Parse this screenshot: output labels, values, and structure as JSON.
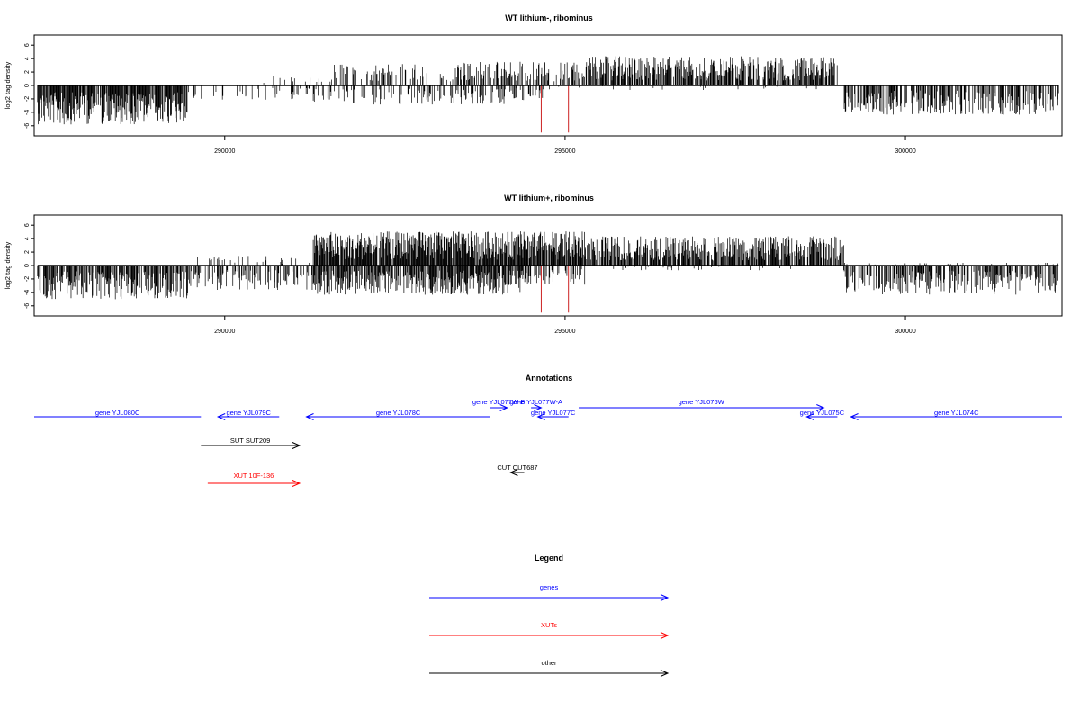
{
  "chart_data": [
    {
      "type": "bar",
      "title": "WT lithium-, ribominus",
      "ylabel": "log2 tag density",
      "xlabel": "",
      "xlim": [
        287200,
        302300
      ],
      "ylim": [
        -7.5,
        7.5
      ],
      "yticks": [
        -6,
        -4,
        -2,
        0,
        2,
        4,
        6
      ],
      "xticks": [
        290000,
        295000,
        300000
      ],
      "xtick_labels": [
        "290000",
        "295000",
        "300000"
      ],
      "grid": false,
      "series": [
        {
          "strand": "minus",
          "color": "#000000",
          "regions": [
            {
              "x": [
                287250,
                289450
              ],
              "level": -4.0,
              "density": 0.85
            },
            {
              "x": [
                289450,
                291300
              ],
              "level": -1.5,
              "density": 0.15
            },
            {
              "x": [
                291300,
                292500
              ],
              "level": -2.0,
              "density": 0.25
            },
            {
              "x": [
                292500,
                294200
              ],
              "level": -2.0,
              "density": 0.3
            },
            {
              "x": [
                294200,
                294700
              ],
              "level": -1.5,
              "density": 0.3
            },
            {
              "x": [
                294700,
                299100
              ],
              "level": -0.5,
              "density": 0.02
            },
            {
              "x": [
                299100,
                302250
              ],
              "level": -3.0,
              "density": 0.55
            }
          ]
        },
        {
          "strand": "plus",
          "color": "#000000",
          "regions": [
            {
              "x": [
                287250,
                290200
              ],
              "level": 0.0,
              "density": 0.0
            },
            {
              "x": [
                290200,
                291500
              ],
              "level": 1.0,
              "density": 0.08
            },
            {
              "x": [
                291500,
                293500
              ],
              "level": 2.2,
              "density": 0.3
            },
            {
              "x": [
                293500,
                294300
              ],
              "level": 2.5,
              "density": 0.4
            },
            {
              "x": [
                294300,
                295300
              ],
              "level": 2.5,
              "density": 0.45
            },
            {
              "x": [
                295300,
                299000
              ],
              "level": 3.0,
              "density": 0.7
            },
            {
              "x": [
                299000,
                302250
              ],
              "level": 0.0,
              "density": 0.0
            }
          ]
        }
      ],
      "markers": [
        {
          "x": 294650,
          "y": -7.0,
          "color": "#cc2222"
        },
        {
          "x": 295050,
          "y": -7.0,
          "color": "#cc2222"
        }
      ]
    },
    {
      "type": "bar",
      "title": "WT lithium+, ribominus",
      "ylabel": "log2 tag density",
      "xlabel": "",
      "xlim": [
        287200,
        302300
      ],
      "ylim": [
        -7.5,
        7.5
      ],
      "yticks": [
        -6,
        -4,
        -2,
        0,
        2,
        4,
        6
      ],
      "xticks": [
        290000,
        295000,
        300000
      ],
      "xtick_labels": [
        "290000",
        "295000",
        "300000"
      ],
      "grid": false,
      "series": [
        {
          "strand": "minus",
          "color": "#000000",
          "regions": [
            {
              "x": [
                287250,
                289500
              ],
              "level": -3.5,
              "density": 0.7
            },
            {
              "x": [
                289500,
                291300
              ],
              "level": -2.5,
              "density": 0.45
            },
            {
              "x": [
                291300,
                294400
              ],
              "level": -3.0,
              "density": 0.75
            },
            {
              "x": [
                294400,
                295300
              ],
              "level": -2.0,
              "density": 0.4
            },
            {
              "x": [
                295300,
                299100
              ],
              "level": -0.5,
              "density": 0.05
            },
            {
              "x": [
                299100,
                302250
              ],
              "level": -3.0,
              "density": 0.55
            }
          ]
        },
        {
          "strand": "plus",
          "color": "#000000",
          "regions": [
            {
              "x": [
                287250,
                289600
              ],
              "level": 0.0,
              "density": 0.0
            },
            {
              "x": [
                289600,
                291300
              ],
              "level": 1.0,
              "density": 0.12
            },
            {
              "x": [
                291300,
                294300
              ],
              "level": 3.5,
              "density": 0.9
            },
            {
              "x": [
                294300,
                295300
              ],
              "level": 3.5,
              "density": 0.85
            },
            {
              "x": [
                295300,
                299100
              ],
              "level": 3.0,
              "density": 0.75
            },
            {
              "x": [
                299100,
                302250
              ],
              "level": 0.3,
              "density": 0.05
            }
          ]
        }
      ],
      "markers": [
        {
          "x": 294650,
          "y": -7.0,
          "color": "#cc2222"
        },
        {
          "x": 295050,
          "y": -7.0,
          "color": "#cc2222"
        }
      ]
    }
  ],
  "annotations": {
    "title": "Annotations",
    "xlim": [
      287200,
      302300
    ],
    "features": [
      {
        "label": "gene YJL080C",
        "start": 287200,
        "end": 289650,
        "direction": "none",
        "row": 0,
        "category": "genes"
      },
      {
        "label": "gene YJL079C",
        "start": 289900,
        "end": 290800,
        "direction": "left",
        "row": 0,
        "category": "genes"
      },
      {
        "label": "gene YJL078C",
        "start": 291200,
        "end": 293900,
        "direction": "left",
        "row": 0,
        "category": "genes"
      },
      {
        "label": "gene YJL077W-B",
        "start": 293900,
        "end": 294150,
        "direction": "right",
        "row": -1,
        "category": "genes"
      },
      {
        "label": "gene YJL077W-A",
        "start": 294500,
        "end": 294650,
        "direction": "right",
        "row": -1,
        "category": "genes"
      },
      {
        "label": "gene YJL077C",
        "start": 294600,
        "end": 295050,
        "direction": "left",
        "row": 0,
        "category": "genes"
      },
      {
        "label": "gene YJL076W",
        "start": 295200,
        "end": 298800,
        "direction": "right",
        "row": -1,
        "category": "genes"
      },
      {
        "label": "gene YJL075C",
        "start": 298550,
        "end": 299000,
        "direction": "left",
        "row": 0,
        "category": "genes"
      },
      {
        "label": "gene YJL074C",
        "start": 299200,
        "end": 302300,
        "direction": "left",
        "row": 0,
        "category": "genes"
      },
      {
        "label": "SUT SUT209",
        "start": 289650,
        "end": 291100,
        "direction": "right",
        "row": 1,
        "category": "other"
      },
      {
        "label": "CUT CUT687",
        "start": 294200,
        "end": 294400,
        "direction": "left",
        "row": 2,
        "category": "other"
      },
      {
        "label": "XUT 10F-136",
        "start": 289750,
        "end": 291100,
        "direction": "right",
        "row": 3,
        "category": "XUTs"
      }
    ]
  },
  "legend": {
    "title": "Legend",
    "items": [
      {
        "label": "genes",
        "color": "#0000ff"
      },
      {
        "label": "XUTs",
        "color": "#ff0000"
      },
      {
        "label": "other",
        "color": "#000000"
      }
    ]
  },
  "colors": {
    "genes": "#0000ff",
    "XUTs": "#ff0000",
    "other": "#000000",
    "marker": "#cc2222",
    "axis": "#000000"
  }
}
